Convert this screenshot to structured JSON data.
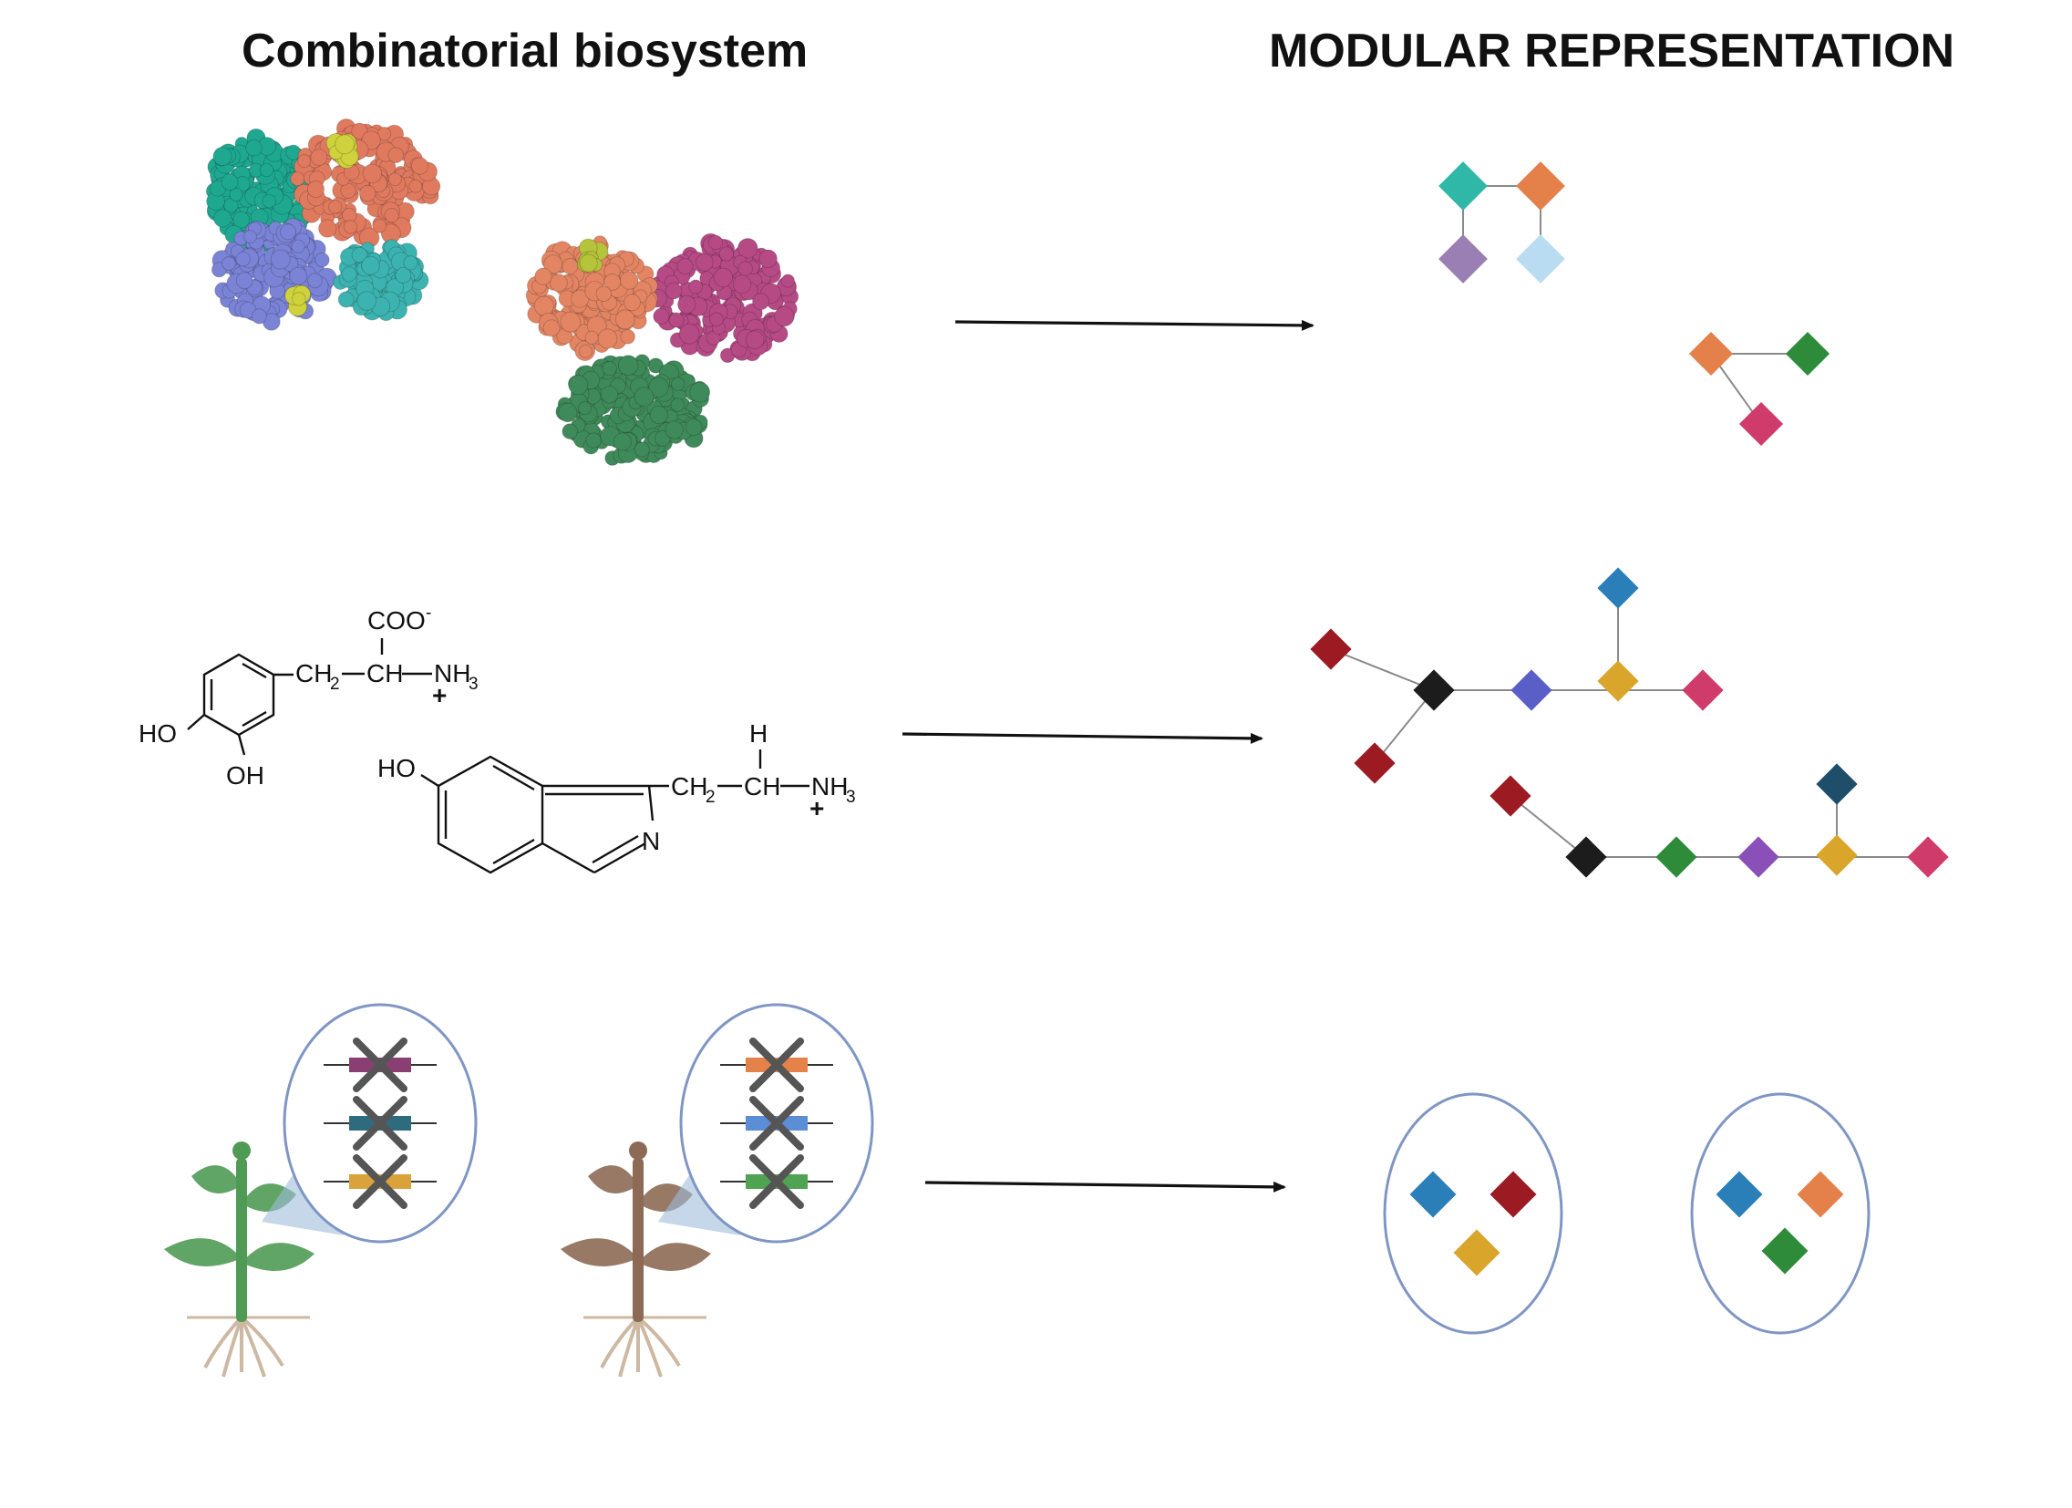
{
  "headings": {
    "left": "Combinatorial biosystem",
    "right": "MODULAR REPRESENTATION"
  },
  "colors": {
    "teal": "#2fb7a8",
    "orange": "#e4814a",
    "purple": "#9a7fb5",
    "light_blue": "#b9dcf2",
    "green": "#2e8b3a",
    "pink": "#cf3b6a",
    "dark_red": "#9c1b22",
    "black": "#1c1c1c",
    "blue_violet": "#5a5fc8",
    "gold": "#d9a52b",
    "steel_blue": "#2b7fb8",
    "navy_teal": "#1f4e6b",
    "violet": "#8a4fb8",
    "ellipse_stroke": "#7f96c4"
  },
  "rows": {
    "proteins": {
      "complex_a_colors": [
        "#1fa890",
        "#e07a5f",
        "#7b83d6",
        "#3cb3b0",
        "#cfd23c"
      ],
      "complex_b_colors": [
        "#e38563",
        "#b64a85",
        "#3f8a5a",
        "#b5c43a"
      ]
    },
    "molecules": {
      "dopa": {
        "coo": "COO",
        "coo_charge": "-",
        "ch2": "CH",
        "ch2_sub": "2",
        "ch": "CH",
        "nh3": "NH",
        "nh3_sub": "3",
        "plus": "+",
        "ho": "HO",
        "oh": "OH"
      },
      "serotonin_like": {
        "ho": "HO",
        "h": "H",
        "ch2": "CH",
        "ch2_sub": "2",
        "ch": "CH",
        "nh3": "NH",
        "nh3_sub": "3",
        "plus": "+",
        "n": "N"
      }
    },
    "plants": {
      "plant_a_color": "#4f9a55",
      "plant_b_color": "#8c6a55",
      "root_color": "#cdb8a2",
      "genes_a": [
        "#8a3f73",
        "#2f6b7e",
        "#d9a23a"
      ],
      "genes_b": [
        "#e4824a",
        "#5b8ed6",
        "#4fa353"
      ]
    }
  }
}
